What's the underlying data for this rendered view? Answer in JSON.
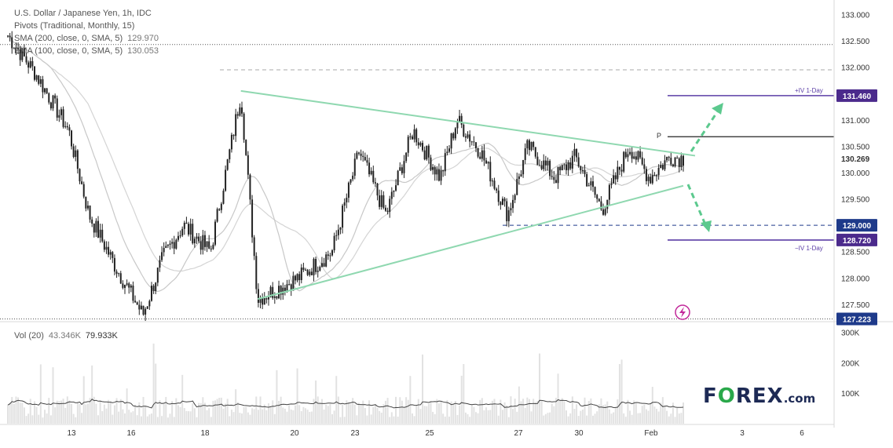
{
  "legend": {
    "title": "U.S. Dollar / Japanese Yen, 1h, IDC",
    "pivots": "Pivots (Traditional, Monthly, 15)",
    "sma_label": "SMA (200, close, 0, SMA, 5)",
    "sma_value": "129.970",
    "ema_label": "EMA (100, close, 0, SMA, 5)",
    "ema_value": "130.053",
    "vol_label": "Vol (20)",
    "vol_value1": "43.346K",
    "vol_value2": "79.933K"
  },
  "annotations": {
    "iv_up": "+IV 1-Day",
    "iv_down": "−IV 1-Day",
    "pivot": "P"
  },
  "logo": {
    "pre": "F",
    "o": "O",
    "post": "REX",
    "dom": ".com"
  },
  "colors": {
    "up": "#222222",
    "trendline": "#8fd8b0",
    "iv": "#5b3ea6",
    "dashed": "#1e3a8a",
    "badge_navy": "#1e3a8a",
    "badge_purple": "#4b2a8c",
    "ma": "#cfcfcf",
    "arrow": "#5cc98e"
  },
  "chart_data": {
    "type": "candlestick",
    "symbol": "USD/JPY",
    "timeframe": "1h",
    "y_ticks": [
      133.0,
      132.5,
      132.0,
      131.5,
      131.0,
      130.5,
      130.0,
      129.5,
      129.0,
      128.5,
      128.0,
      127.5
    ],
    "y_tick_labels": [
      "133.000",
      "132.500",
      "132.000",
      "131.500",
      "131.000",
      "130.500",
      "130.000",
      "129.500",
      "129.000",
      "128.500",
      "128.000",
      "127.500"
    ],
    "ylim": [
      127.2,
      133.2
    ],
    "x_ticks": [
      "13",
      "16",
      "18",
      "20",
      "23",
      "25",
      "27",
      "30",
      "Feb",
      "3",
      "6"
    ],
    "price_badges": [
      {
        "label": "131.460",
        "value": 131.46,
        "style": "purple"
      },
      {
        "label": "130.269",
        "value": 130.269,
        "style": "plain"
      },
      {
        "label": "129.000",
        "value": 129.0,
        "style": "navy"
      },
      {
        "label": "128.720",
        "value": 128.72,
        "style": "purple"
      },
      {
        "label": "127.223",
        "value": 127.223,
        "style": "navy"
      }
    ],
    "horizontal_levels": [
      {
        "value": 132.43,
        "style": "dotted"
      },
      {
        "value": 131.95,
        "style": "dashed-grey"
      },
      {
        "value": 131.46,
        "style": "iv",
        "label": "+IV 1-Day"
      },
      {
        "value": 130.68,
        "style": "pivot",
        "label": "P"
      },
      {
        "value": 129.0,
        "style": "dashed"
      },
      {
        "value": 128.72,
        "style": "iv",
        "label": "−IV 1-Day"
      },
      {
        "value": 127.223,
        "style": "dotted"
      }
    ],
    "key_points": [
      {
        "t": 0,
        "p": 132.6
      },
      {
        "t": 0.04,
        "p": 131.9
      },
      {
        "t": 0.09,
        "p": 130.8
      },
      {
        "t": 0.12,
        "p": 129.2
      },
      {
        "t": 0.16,
        "p": 128.2
      },
      {
        "t": 0.2,
        "p": 127.3
      },
      {
        "t": 0.23,
        "p": 128.4
      },
      {
        "t": 0.26,
        "p": 129.0
      },
      {
        "t": 0.3,
        "p": 128.5
      },
      {
        "t": 0.345,
        "p": 131.5
      },
      {
        "t": 0.37,
        "p": 127.6
      },
      {
        "t": 0.43,
        "p": 128.0
      },
      {
        "t": 0.48,
        "p": 128.5
      },
      {
        "t": 0.52,
        "p": 130.4
      },
      {
        "t": 0.56,
        "p": 129.2
      },
      {
        "t": 0.6,
        "p": 130.8
      },
      {
        "t": 0.64,
        "p": 129.9
      },
      {
        "t": 0.665,
        "p": 131.0
      },
      {
        "t": 0.7,
        "p": 130.4
      },
      {
        "t": 0.74,
        "p": 129.2
      },
      {
        "t": 0.77,
        "p": 130.5
      },
      {
        "t": 0.81,
        "p": 129.9
      },
      {
        "t": 0.84,
        "p": 130.3
      },
      {
        "t": 0.88,
        "p": 129.3
      },
      {
        "t": 0.92,
        "p": 130.5
      },
      {
        "t": 0.95,
        "p": 129.9
      },
      {
        "t": 0.98,
        "p": 130.3
      },
      {
        "t": 1.0,
        "p": 130.27
      }
    ],
    "volume": {
      "y_ticks": [
        "300K",
        "200K",
        "100K"
      ],
      "tick_values": [
        300000,
        200000,
        100000
      ],
      "max": 330000
    }
  }
}
